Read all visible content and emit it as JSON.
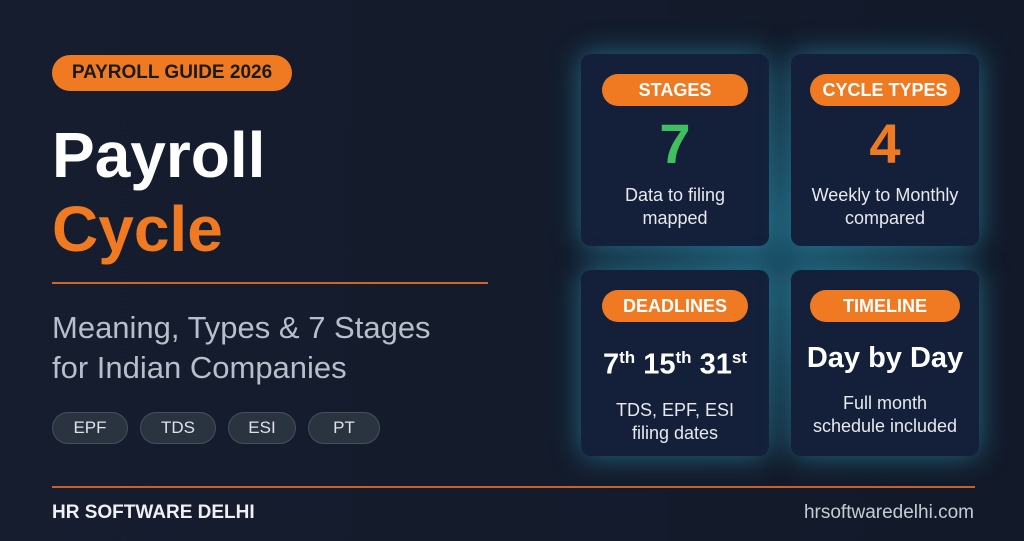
{
  "header": {
    "badge": "PAYROLL GUIDE 2026",
    "title_line1": "Payroll",
    "title_line2": "Cycle",
    "subtitle_line1": "Meaning, Types & 7 Stages",
    "subtitle_line2": "for Indian Companies"
  },
  "chips": [
    "EPF",
    "TDS",
    "ESI",
    "PT"
  ],
  "cards": [
    {
      "label": "STAGES",
      "value": "7",
      "desc1": "Data to filing",
      "desc2": "mapped"
    },
    {
      "label": "CYCLE TYPES",
      "value": "4",
      "desc1": "Weekly to Monthly",
      "desc2": "compared"
    },
    {
      "label": "DEADLINES",
      "dates": [
        {
          "n": "7",
          "s": "th"
        },
        {
          "n": "15",
          "s": "th"
        },
        {
          "n": "31",
          "s": "st"
        }
      ],
      "desc1": "TDS, EPF, ESI",
      "desc2": "filing dates"
    },
    {
      "label": "TIMELINE",
      "value": "Day by Day",
      "desc1": "Full month",
      "desc2": "schedule included"
    }
  ],
  "footer": {
    "brand": "HR SOFTWARE DELHI",
    "website": "hrsoftwaredelhi.com"
  },
  "colors": {
    "accent": "#f07a22",
    "green": "#3fbf5f",
    "background": "#131b2b"
  }
}
